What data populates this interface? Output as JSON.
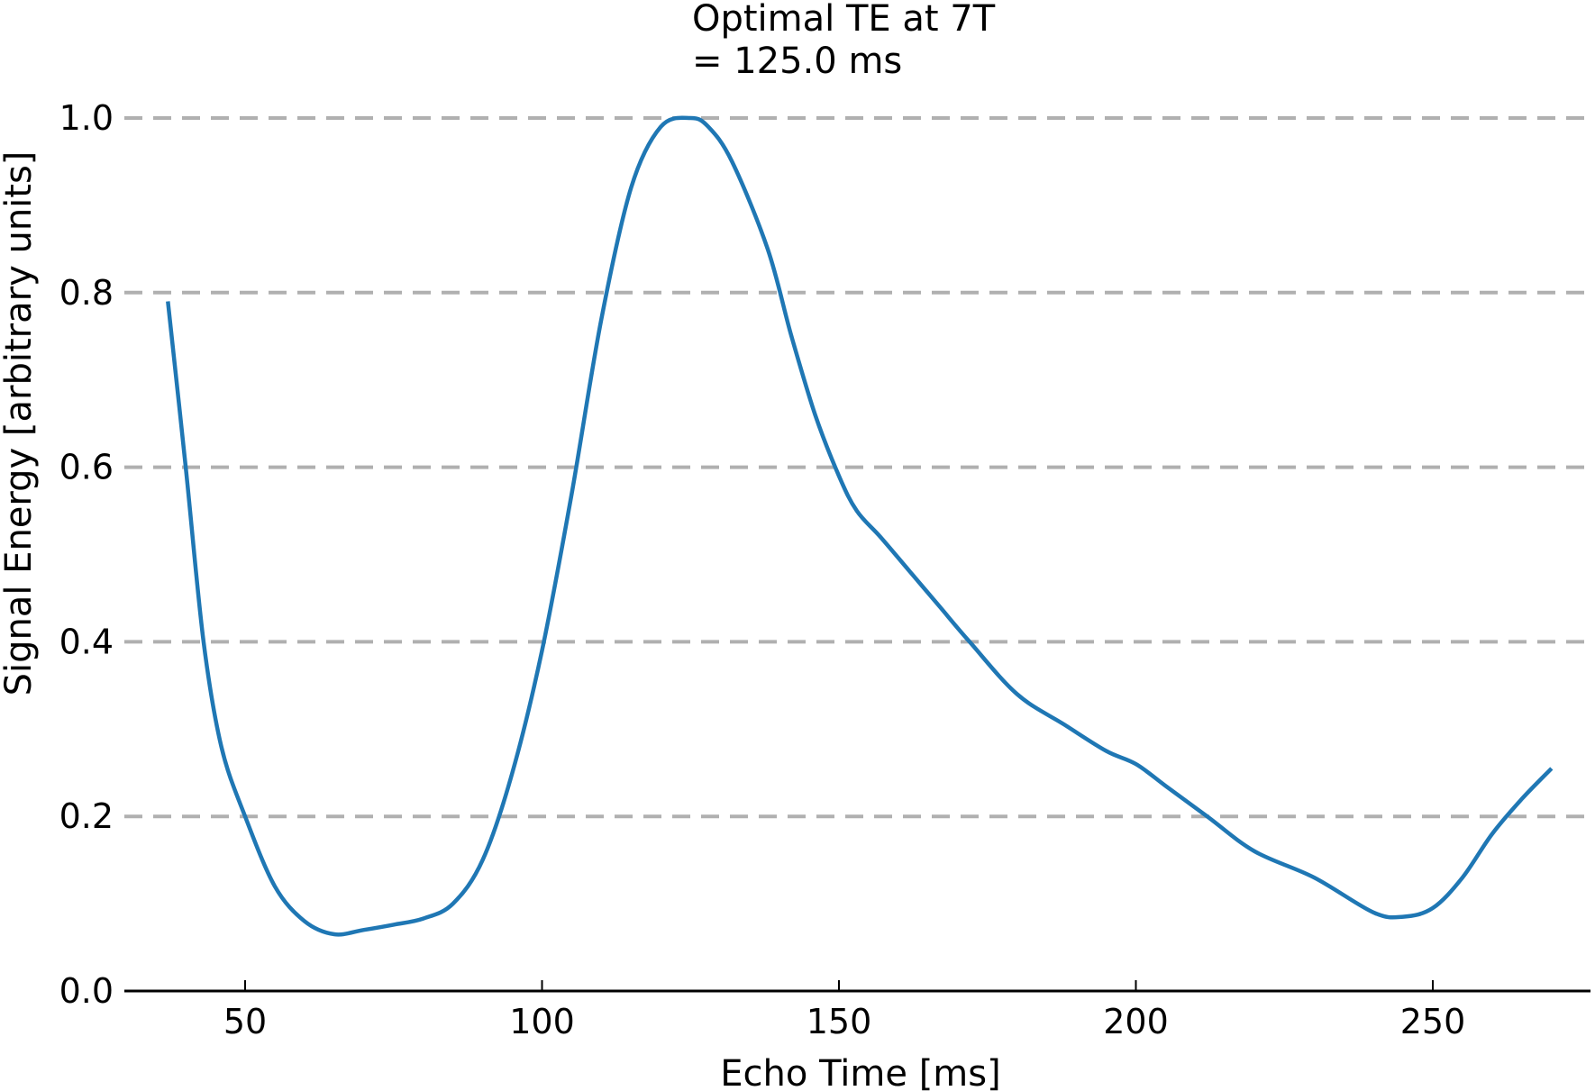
{
  "chart_data": {
    "type": "line",
    "title": [
      "Optimal TE at 7T",
      "= 125.0 ms"
    ],
    "xlabel": "Echo Time [ms]",
    "ylabel": "Signal Energy [arbitrary units]",
    "xlim": [
      30,
      278
    ],
    "ylim": [
      0.0,
      1.0
    ],
    "xticks": [
      50,
      100,
      150,
      200,
      250
    ],
    "xtick_labels": [
      "50",
      "100",
      "150",
      "200",
      "250"
    ],
    "yticks": [
      0.0,
      0.2,
      0.4,
      0.6,
      0.8,
      1.0
    ],
    "ytick_labels": [
      "0.0",
      "0.2",
      "0.4",
      "0.6",
      "0.8",
      "1.0"
    ],
    "grid": "horizontal-dashed",
    "line_color": "#1f77b4",
    "grid_color": "#b0b0b0",
    "series": [
      {
        "x": [
          37,
          40,
          43,
          46,
          50,
          55,
          60,
          65,
          70,
          75,
          80,
          85,
          90,
          95,
          100,
          105,
          110,
          115,
          120,
          125,
          128,
          132,
          138,
          142,
          146,
          150,
          153,
          157,
          162,
          167,
          172,
          180,
          188,
          195,
          200,
          205,
          212,
          220,
          230,
          240,
          245,
          250,
          255,
          260,
          265,
          270
        ],
        "y": [
          0.79,
          0.6,
          0.4,
          0.28,
          0.2,
          0.12,
          0.08,
          0.065,
          0.07,
          0.076,
          0.083,
          0.1,
          0.15,
          0.25,
          0.39,
          0.57,
          0.77,
          0.92,
          0.99,
          1.0,
          0.99,
          0.95,
          0.85,
          0.75,
          0.66,
          0.59,
          0.55,
          0.52,
          0.48,
          0.44,
          0.4,
          0.34,
          0.305,
          0.275,
          0.26,
          0.235,
          0.2,
          0.16,
          0.13,
          0.09,
          0.085,
          0.095,
          0.13,
          0.18,
          0.22,
          0.255
        ]
      }
    ]
  }
}
